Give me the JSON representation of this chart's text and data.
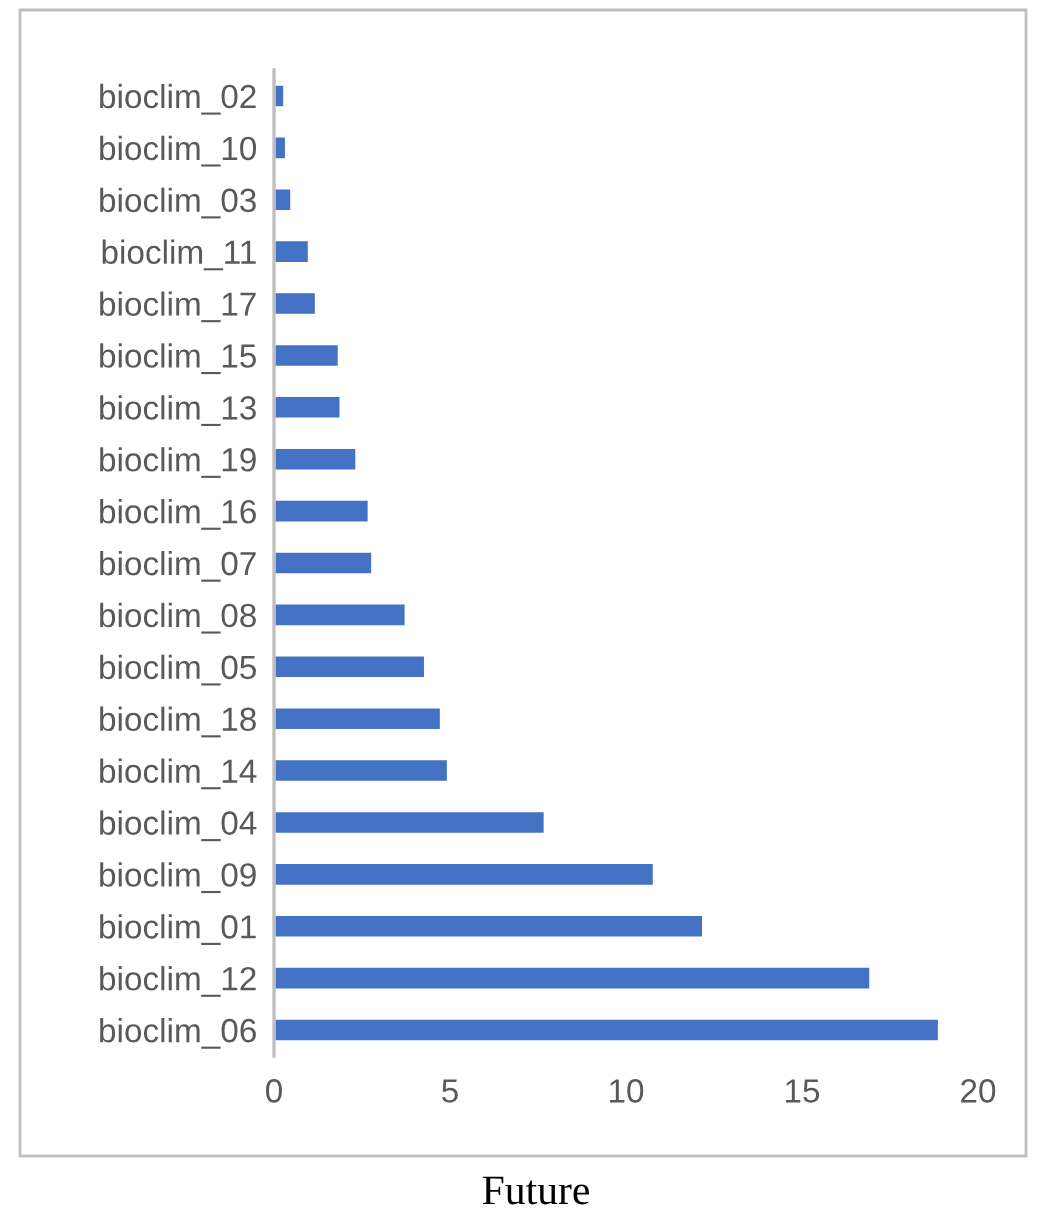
{
  "chart_data": {
    "type": "bar",
    "orientation": "horizontal",
    "xlabel": "Future",
    "categories": [
      "bioclim_02",
      "bioclim_10",
      "bioclim_03",
      "bioclim_11",
      "bioclim_17",
      "bioclim_15",
      "bioclim_13",
      "bioclim_19",
      "bioclim_16",
      "bioclim_07",
      "bioclim_08",
      "bioclim_05",
      "bioclim_18",
      "bioclim_14",
      "bioclim_04",
      "bioclim_09",
      "bioclim_01",
      "bioclim_12",
      "bioclim_06"
    ],
    "values": [
      0.3,
      0.35,
      0.5,
      1.0,
      1.2,
      1.85,
      1.9,
      2.35,
      2.7,
      2.8,
      3.75,
      4.3,
      4.75,
      4.95,
      7.7,
      10.8,
      12.2,
      16.95,
      18.9
    ],
    "color": "#4472c4",
    "xlim": [
      0,
      20
    ],
    "xticks": [
      0,
      5,
      10,
      15,
      20
    ],
    "grid": false,
    "legend": false
  }
}
